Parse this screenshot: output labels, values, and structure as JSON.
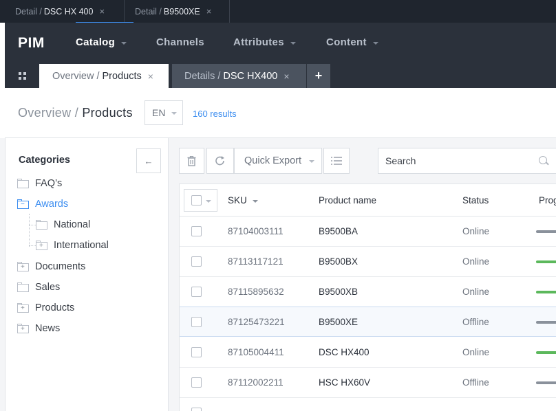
{
  "window_tabs": [
    {
      "prefix": "Detail /",
      "value": "DSC HX 400",
      "close": "×"
    },
    {
      "prefix": "Detail /",
      "value": "B9500XE",
      "close": "×"
    }
  ],
  "nav": {
    "logo": "PIM",
    "items": [
      {
        "label": "Catalog",
        "has_dropdown": true,
        "active": true
      },
      {
        "label": "Channels",
        "has_dropdown": false
      },
      {
        "label": "Attributes",
        "has_dropdown": true
      },
      {
        "label": "Content",
        "has_dropdown": true
      }
    ]
  },
  "page_tabs": [
    {
      "prefix": "Overview /",
      "value": "Products",
      "close": "×",
      "active": true
    },
    {
      "prefix": "Details /",
      "value": "DSC HX400",
      "close": "×"
    }
  ],
  "add_tab_label": "+",
  "header": {
    "title_prefix": "Overview /",
    "title": "Products",
    "language": "EN",
    "results": "160 results"
  },
  "sidebar": {
    "heading": "Categories",
    "collapse_icon": "arrow-left-icon",
    "tree": [
      {
        "label": "FAQ’s",
        "state": "empty",
        "level": 0
      },
      {
        "label": "Awards",
        "state": "expanded",
        "level": 0,
        "selected": true
      },
      {
        "label": "National",
        "state": "empty",
        "level": 1
      },
      {
        "label": "International",
        "state": "collapsed",
        "level": 1
      },
      {
        "label": "Documents",
        "state": "collapsed",
        "level": 0
      },
      {
        "label": "Sales",
        "state": "empty",
        "level": 0
      },
      {
        "label": "Products",
        "state": "collapsed",
        "level": 0
      },
      {
        "label": "News",
        "state": "collapsed",
        "level": 0
      }
    ]
  },
  "toolbar": {
    "delete_icon": "trash-icon",
    "refresh_icon": "refresh-icon",
    "quick_export_label": "Quick Export",
    "list_icon": "list-icon",
    "search_placeholder": "Search"
  },
  "table": {
    "columns": [
      "SKU",
      "Product name",
      "Status",
      "Prog"
    ],
    "rows": [
      {
        "sku": "87104003111",
        "name": "B9500BA",
        "status": "Online",
        "progress_color": "#8a919b"
      },
      {
        "sku": "87113117121",
        "name": "B9500BX",
        "status": "Online",
        "progress_color": "#5cb85c"
      },
      {
        "sku": "87115895632",
        "name": "B9500XB",
        "status": "Online",
        "progress_color": "#5cb85c"
      },
      {
        "sku": "87125473221",
        "name": "B9500XE",
        "status": "Offline",
        "progress_color": "#8a919b",
        "highlighted": true
      },
      {
        "sku": "87105004411",
        "name": "DSC HX400",
        "status": "Online",
        "progress_color": "#5cb85c"
      },
      {
        "sku": "87112002211",
        "name": "HSC HX60V",
        "status": "Offline",
        "progress_color": "#8a919b"
      }
    ]
  },
  "colors": {
    "accent": "#3d8ef0",
    "nav_bg": "#2b313b",
    "tabs_bg": "#1f252e",
    "success": "#5cb85c"
  }
}
